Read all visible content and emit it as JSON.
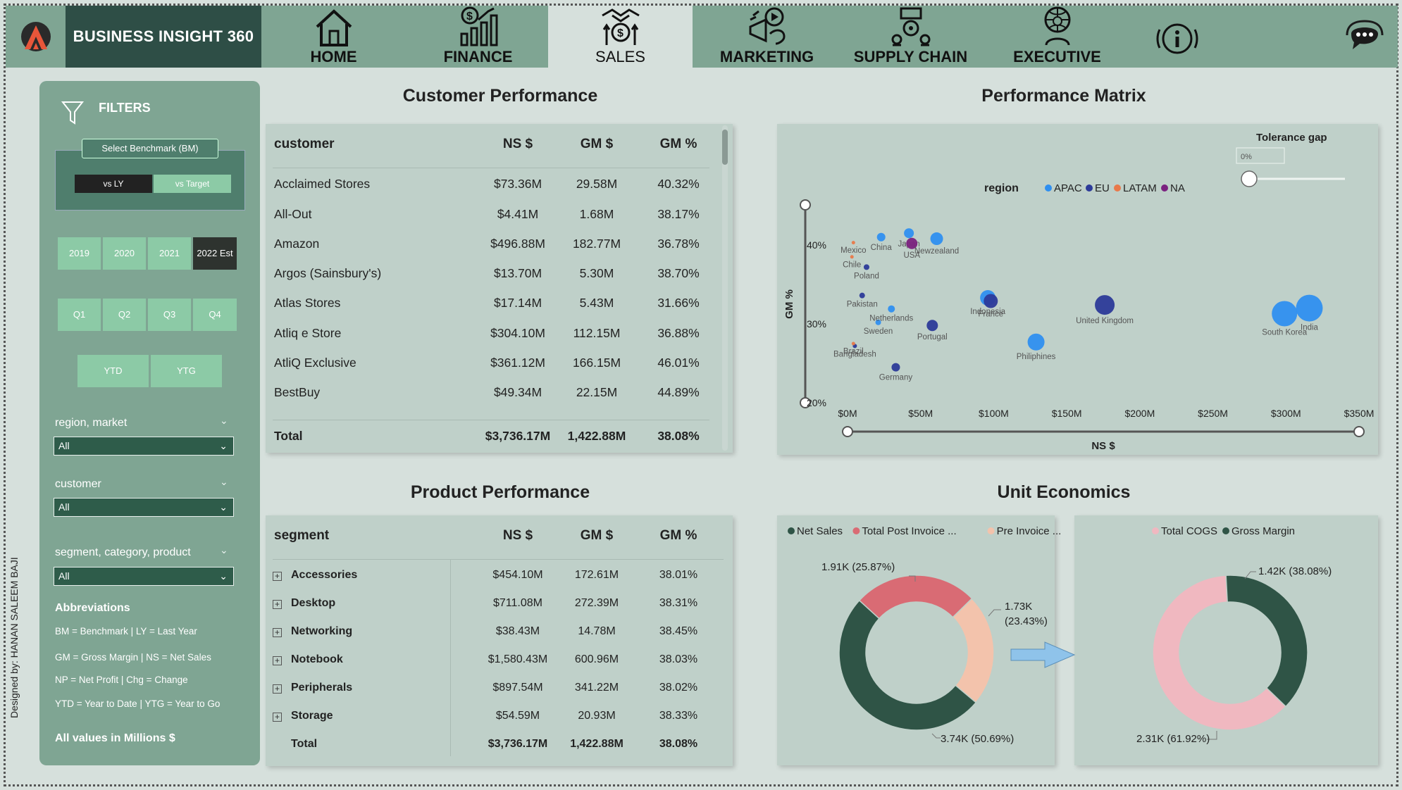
{
  "brand": "BUSINESS INSIGHT 360",
  "nav": {
    "tabs": [
      {
        "label": "HOME",
        "icon": "home-icon"
      },
      {
        "label": "FINANCE",
        "icon": "finance-icon"
      },
      {
        "label": "SALES",
        "icon": "sales-icon",
        "active": true
      },
      {
        "label": "MARKETING",
        "icon": "marketing-icon"
      },
      {
        "label": "SUPPLY CHAIN",
        "icon": "supply-chain-icon"
      },
      {
        "label": "EXECUTIVE",
        "icon": "executive-icon"
      }
    ]
  },
  "sidebar": {
    "title": "FILTERS",
    "benchmark_label": "Select Benchmark (BM)",
    "benchmark_options": [
      "vs LY",
      "vs Target"
    ],
    "benchmark_selected": "vs Target",
    "years": [
      "2019",
      "2020",
      "2021",
      "2022 Est"
    ],
    "year_selected": "2022 Est",
    "quarters": [
      "Q1",
      "Q2",
      "Q3",
      "Q4"
    ],
    "periods": [
      "YTD",
      "YTG"
    ],
    "filters": [
      {
        "label": "region, market",
        "value": "All"
      },
      {
        "label": "customer",
        "value": "All"
      },
      {
        "label": "segment, category, product",
        "value": "All"
      }
    ],
    "abbreviations_title": "Abbreviations",
    "abbreviations": [
      "BM = Benchmark | LY = Last Year",
      "GM = Gross Margin | NS = Net Sales",
      "NP = Net Profit | Chg = Change",
      "YTD = Year to Date | YTG = Year to Go"
    ],
    "footer": "All values in Millions $",
    "designed_by": "Designed by: HANAN SALEEM BAJI"
  },
  "customer_performance": {
    "title": "Customer Performance",
    "columns": [
      "customer",
      "NS $",
      "GM $",
      "GM %"
    ],
    "rows": [
      [
        "Acclaimed Stores",
        "$73.36M",
        "29.58M",
        "40.32%"
      ],
      [
        "All-Out",
        "$4.41M",
        "1.68M",
        "38.17%"
      ],
      [
        "Amazon",
        "$496.88M",
        "182.77M",
        "36.78%"
      ],
      [
        "Argos (Sainsbury's)",
        "$13.70M",
        "5.30M",
        "38.70%"
      ],
      [
        "Atlas Stores",
        "$17.14M",
        "5.43M",
        "31.66%"
      ],
      [
        "Atliq e Store",
        "$304.10M",
        "112.15M",
        "36.88%"
      ],
      [
        "AtliQ Exclusive",
        "$361.12M",
        "166.15M",
        "46.01%"
      ],
      [
        "BestBuy",
        "$49.34M",
        "22.15M",
        "44.89%"
      ]
    ],
    "total": [
      "Total",
      "$3,736.17M",
      "1,422.88M",
      "38.08%"
    ]
  },
  "product_performance": {
    "title": "Product Performance",
    "columns": [
      "segment",
      "NS $",
      "GM $",
      "GM %"
    ],
    "rows": [
      [
        "Accessories",
        "$454.10M",
        "172.61M",
        "38.01%"
      ],
      [
        "Desktop",
        "$711.08M",
        "272.39M",
        "38.31%"
      ],
      [
        "Networking",
        "$38.43M",
        "14.78M",
        "38.45%"
      ],
      [
        "Notebook",
        "$1,580.43M",
        "600.96M",
        "38.03%"
      ],
      [
        "Peripherals",
        "$897.54M",
        "341.22M",
        "38.02%"
      ],
      [
        "Storage",
        "$54.59M",
        "20.93M",
        "38.33%"
      ]
    ],
    "total": [
      "Total",
      "$3,736.17M",
      "1,422.88M",
      "38.08%"
    ]
  },
  "performance_matrix_title": "Performance Matrix",
  "unit_economics_title": "Unit Economics",
  "chart_data": [
    {
      "type": "scatter",
      "title": "Performance Matrix",
      "xlabel": "NS $",
      "ylabel": "GM %",
      "xlim": [
        0,
        350
      ],
      "ylim": [
        20,
        45
      ],
      "x_ticks": [
        "$0M",
        "$50M",
        "$100M",
        "$150M",
        "$200M",
        "$250M",
        "$300M",
        "$350M"
      ],
      "y_ticks": [
        "20%",
        "30%",
        "40%"
      ],
      "legend_title": "region",
      "legend": [
        {
          "name": "APAC",
          "color": "#2f8ff0"
        },
        {
          "name": "EU",
          "color": "#2c3a99"
        },
        {
          "name": "LATAM",
          "color": "#e8794a"
        },
        {
          "name": "NA",
          "color": "#7b2280"
        }
      ],
      "slider_label": "Tolerance gap",
      "slider_value": "0%",
      "points": [
        {
          "label": "Japan",
          "x": 42,
          "y": 41.5,
          "region": "APAC",
          "size": 7
        },
        {
          "label": "USA",
          "x": 44,
          "y": 40.2,
          "region": "NA",
          "size": 8
        },
        {
          "label": "Newzealand",
          "x": 61,
          "y": 40.8,
          "region": "APAC",
          "size": 9
        },
        {
          "label": "Mexico",
          "x": 4,
          "y": 40.3,
          "region": "LATAM",
          "size": 2.5
        },
        {
          "label": "China",
          "x": 23,
          "y": 41.0,
          "region": "APAC",
          "size": 6
        },
        {
          "label": "Chile",
          "x": 3,
          "y": 38.5,
          "region": "LATAM",
          "size": 2.5
        },
        {
          "label": "Poland",
          "x": 13,
          "y": 37.2,
          "region": "EU",
          "size": 4
        },
        {
          "label": "Pakistan",
          "x": 10,
          "y": 33.6,
          "region": "EU",
          "size": 4
        },
        {
          "label": "Sweden",
          "x": 21,
          "y": 30.2,
          "region": "APAC",
          "size": 4
        },
        {
          "label": "Netherlands",
          "x": 30,
          "y": 31.9,
          "region": "APAC",
          "size": 5
        },
        {
          "label": "Portugal",
          "x": 58,
          "y": 29.8,
          "region": "EU",
          "size": 8
        },
        {
          "label": "Bangladesh",
          "x": 5,
          "y": 27.2,
          "region": "EU",
          "size": 3
        },
        {
          "label": "Brazil",
          "x": 4,
          "y": 27.5,
          "region": "LATAM",
          "size": 2.5
        },
        {
          "label": "Germany",
          "x": 33,
          "y": 24.5,
          "region": "EU",
          "size": 6
        },
        {
          "label": "Indonesia",
          "x": 96,
          "y": 33.3,
          "region": "APAC",
          "size": 11
        },
        {
          "label": "France",
          "x": 98,
          "y": 32.9,
          "region": "EU",
          "size": 10
        },
        {
          "label": "United Kingdom",
          "x": 176,
          "y": 32.4,
          "region": "EU",
          "size": 14
        },
        {
          "label": "Philiphines",
          "x": 129,
          "y": 27.7,
          "region": "APAC",
          "size": 12
        },
        {
          "label": "South Korea",
          "x": 299,
          "y": 31.3,
          "region": "APAC",
          "size": 18
        },
        {
          "label": "India",
          "x": 316,
          "y": 32.0,
          "region": "APAC",
          "size": 19
        }
      ]
    },
    {
      "type": "pie",
      "title": "",
      "legend_items": [
        "Net Sales",
        "Total Post Invoice ...",
        "Pre Invoice ..."
      ],
      "slices": [
        {
          "name": "Net Sales",
          "value": 3.74,
          "label": "3.74K (50.69%)",
          "color": "#2f5446"
        },
        {
          "name": "Total Post Invoice Deductions",
          "value": 1.91,
          "label": "1.91K (25.87%)",
          "color": "#d96b74"
        },
        {
          "name": "Pre Invoice Deductions",
          "value": 1.73,
          "label": "1.73K (23.43%)",
          "color": "#f3c3ac"
        }
      ]
    },
    {
      "type": "pie",
      "title": "",
      "legend_items": [
        "Total COGS",
        "Gross Margin"
      ],
      "slices": [
        {
          "name": "Total COGS",
          "value": 2.31,
          "label": "2.31K (61.92%)",
          "color": "#f0b8c0"
        },
        {
          "name": "Gross Margin",
          "value": 1.42,
          "label": "1.42K (38.08%)",
          "color": "#2f5446"
        }
      ]
    }
  ]
}
